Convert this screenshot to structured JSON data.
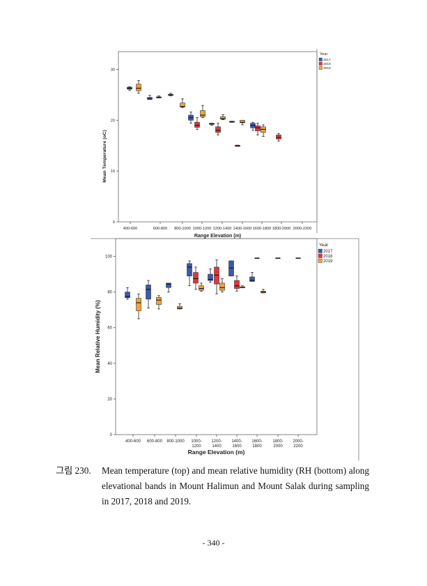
{
  "colors": {
    "2017": "#3a5bad",
    "2018": "#e2363e",
    "2019": "#f2a33a",
    "axis": "#555555",
    "frame": "#777777",
    "median": "#111111",
    "text": "#222222"
  },
  "chart_data": [
    {
      "type": "box",
      "title": "",
      "xlabel": "Range Elevation (m)",
      "ylabel": "Mean Temperature (oC)",
      "ylim": [
        0,
        33.5
      ],
      "yticks": [
        0,
        10,
        20,
        30
      ],
      "grid": false,
      "legend": {
        "title": "Year",
        "placement": "right",
        "entries": [
          "2017",
          "2018",
          "2019"
        ]
      },
      "categories": [
        "400-600",
        "600-800",
        "800-1000",
        "1000-1200",
        "1200-1400",
        "1400-1600",
        "1600-1800",
        "1800-2000",
        "2000-2200"
      ],
      "boxes": [
        {
          "cat": 0,
          "year": "2017",
          "min": 25.9,
          "q1": 26.1,
          "median": 26.3,
          "q3": 26.5,
          "max": 26.6
        },
        {
          "cat": 0,
          "year": "2019",
          "min": 25.3,
          "q1": 25.8,
          "median": 26.3,
          "q3": 27.1,
          "max": 27.8
        },
        {
          "cat": 1,
          "year": "2017",
          "min": 24.1,
          "q1": 24.1,
          "median": 24.2,
          "q3": 24.5,
          "max": 24.9
        },
        {
          "cat": 1,
          "year": "2019",
          "min": 24.4,
          "q1": 24.4,
          "median": 24.5,
          "q3": 24.6,
          "max": 24.8
        },
        {
          "cat": 2,
          "year": "2017",
          "min": 24.8,
          "q1": 24.9,
          "median": 25.0,
          "q3": 25.1,
          "max": 25.3
        },
        {
          "cat": 2,
          "year": "2019",
          "min": 22.5,
          "q1": 22.6,
          "median": 22.7,
          "q3": 23.4,
          "max": 24.2
        },
        {
          "cat": 3,
          "year": "2017",
          "min": 19.4,
          "q1": 20.0,
          "median": 20.5,
          "q3": 21.0,
          "max": 21.6
        },
        {
          "cat": 3,
          "year": "2018",
          "min": 18.2,
          "q1": 18.6,
          "median": 19.0,
          "q3": 19.6,
          "max": 20.5
        },
        {
          "cat": 3,
          "year": "2019",
          "min": 20.5,
          "q1": 20.7,
          "median": 21.0,
          "q3": 21.9,
          "max": 22.9
        },
        {
          "cat": 4,
          "year": "2017",
          "min": 19.0,
          "q1": 19.2,
          "median": 19.3,
          "q3": 19.4,
          "max": 19.4
        },
        {
          "cat": 4,
          "year": "2018",
          "min": 17.1,
          "q1": 17.6,
          "median": 18.0,
          "q3": 18.7,
          "max": 19.4
        },
        {
          "cat": 4,
          "year": "2019",
          "min": 20.1,
          "q1": 20.2,
          "median": 20.3,
          "q3": 20.7,
          "max": 21.1
        },
        {
          "cat": 5,
          "year": "2017",
          "min": 19.6,
          "q1": 19.6,
          "median": 19.7,
          "q3": 19.8,
          "max": 19.8
        },
        {
          "cat": 5,
          "year": "2018",
          "min": 14.9,
          "q1": 14.95,
          "median": 15.0,
          "q3": 15.05,
          "max": 15.1
        },
        {
          "cat": 5,
          "year": "2019",
          "min": 19.1,
          "q1": 19.5,
          "median": 19.6,
          "q3": 20.0,
          "max": 20.0
        },
        {
          "cat": 6,
          "year": "2017",
          "min": 18.0,
          "q1": 18.5,
          "median": 19.0,
          "q3": 19.4,
          "max": 19.6
        },
        {
          "cat": 6,
          "year": "2018",
          "min": 17.1,
          "q1": 17.9,
          "median": 18.5,
          "q3": 18.9,
          "max": 19.4
        },
        {
          "cat": 6,
          "year": "2019",
          "min": 16.8,
          "q1": 17.6,
          "median": 18.2,
          "q3": 18.7,
          "max": 19.1
        },
        {
          "cat": 7,
          "year": "2018",
          "min": 15.9,
          "q1": 16.3,
          "median": 16.6,
          "q3": 17.1,
          "max": 17.4
        },
        {
          "cat": 7,
          "year": "2018b",
          "min": 15.9,
          "q1": 16.3,
          "median": 16.6,
          "q3": 17.1,
          "max": 17.4
        }
      ]
    },
    {
      "type": "box",
      "title": "",
      "xlabel": "Range Elevation (m)",
      "ylabel": "Mean Relative Humidity (%)",
      "ylim": [
        0,
        110
      ],
      "yticks": [
        0,
        20,
        40,
        60,
        80,
        100
      ],
      "grid": false,
      "legend": {
        "title": "Year",
        "placement": "right",
        "entries": [
          "2017",
          "2018",
          "2019"
        ]
      },
      "categories": [
        "400-600",
        "600-800",
        "800-1000",
        "1000-1200",
        "1200-1400",
        "1400-1600",
        "1600-1800",
        "1800-2000",
        "2000-2200"
      ],
      "category_lines": [
        [
          "400-600"
        ],
        [
          "600-800"
        ],
        [
          "800-1000"
        ],
        [
          "1000-",
          "1200"
        ],
        [
          "1200-",
          "1400"
        ],
        [
          "1400-",
          "1600"
        ],
        [
          "1600-",
          "1800"
        ],
        [
          "1800-",
          "2000"
        ],
        [
          "2000-",
          "2200"
        ]
      ],
      "boxes": [
        {
          "cat": 0,
          "year": "2017",
          "min": 76.0,
          "q1": 76.8,
          "median": 77.5,
          "q3": 80.0,
          "max": 82.5
        },
        {
          "cat": 0,
          "year": "2019",
          "min": 65.0,
          "q1": 69.5,
          "median": 74.0,
          "q3": 76.5,
          "max": 79.0
        },
        {
          "cat": 1,
          "year": "2017",
          "min": 71.0,
          "q1": 76.0,
          "median": 81.5,
          "q3": 84.0,
          "max": 86.5
        },
        {
          "cat": 1,
          "year": "2019",
          "min": 70.5,
          "q1": 73.0,
          "median": 75.5,
          "q3": 77.0,
          "max": 78.0
        },
        {
          "cat": 2,
          "year": "2017",
          "min": 80.0,
          "q1": 82.5,
          "median": 84.5,
          "q3": 85.0,
          "max": 85.0
        },
        {
          "cat": 2,
          "year": "2019",
          "min": 70.5,
          "q1": 70.5,
          "median": 71.0,
          "q3": 72.0,
          "max": 73.5
        },
        {
          "cat": 3,
          "year": "2017",
          "min": 83.5,
          "q1": 89.0,
          "median": 94.0,
          "q3": 96.0,
          "max": 97.5
        },
        {
          "cat": 3,
          "year": "2018",
          "min": 81.5,
          "q1": 85.0,
          "median": 87.5,
          "q3": 91.0,
          "max": 94.0
        },
        {
          "cat": 3,
          "year": "2019",
          "min": 80.5,
          "q1": 81.0,
          "median": 82.0,
          "q3": 83.5,
          "max": 85.0
        },
        {
          "cat": 4,
          "year": "2017",
          "min": 85.5,
          "q1": 86.5,
          "median": 87.0,
          "q3": 90.0,
          "max": 93.0
        },
        {
          "cat": 4,
          "year": "2018",
          "min": 79.0,
          "q1": 84.5,
          "median": 89.5,
          "q3": 94.0,
          "max": 98.0
        },
        {
          "cat": 4,
          "year": "2019",
          "min": 80.0,
          "q1": 81.0,
          "median": 82.5,
          "q3": 85.0,
          "max": 87.5
        },
        {
          "cat": 5,
          "year": "2017",
          "min": 89.0,
          "q1": 89.0,
          "median": 93.5,
          "q3": 97.5,
          "max": 97.5
        },
        {
          "cat": 5,
          "year": "2018",
          "min": 80.5,
          "q1": 82.0,
          "median": 83.5,
          "q3": 86.5,
          "max": 89.0
        },
        {
          "cat": 5,
          "year": "2019",
          "min": 82.5,
          "q1": 82.5,
          "median": 82.5,
          "q3": 83.0,
          "max": 83.5
        },
        {
          "cat": 6,
          "year": "2017",
          "min": 86.0,
          "q1": 86.0,
          "median": 86.5,
          "q3": 88.5,
          "max": 91.0
        },
        {
          "cat": 6,
          "year": "2018",
          "min": 99.0,
          "q1": 99.0,
          "median": 99.0,
          "q3": 99.0,
          "max": 99.0
        },
        {
          "cat": 6,
          "year": "2019",
          "min": 79.5,
          "q1": 79.5,
          "median": 80.0,
          "q3": 80.5,
          "max": 81.5
        },
        {
          "cat": 7,
          "year": "2018",
          "min": 99.0,
          "q1": 99.0,
          "median": 99.0,
          "q3": 99.0,
          "max": 99.0
        },
        {
          "cat": 8,
          "year": "2018",
          "min": 99.0,
          "q1": 99.0,
          "median": 99.0,
          "q3": 99.0,
          "max": 99.0
        }
      ]
    }
  ],
  "caption": {
    "label": "그림 230.",
    "text": "Mean temperature (top) and mean relative humidity (RH (bottom) along elevational bands in Mount Halimun and Mount Salak during sampling in 2017, 2018 and 2019."
  },
  "page_number": "- 340 -"
}
